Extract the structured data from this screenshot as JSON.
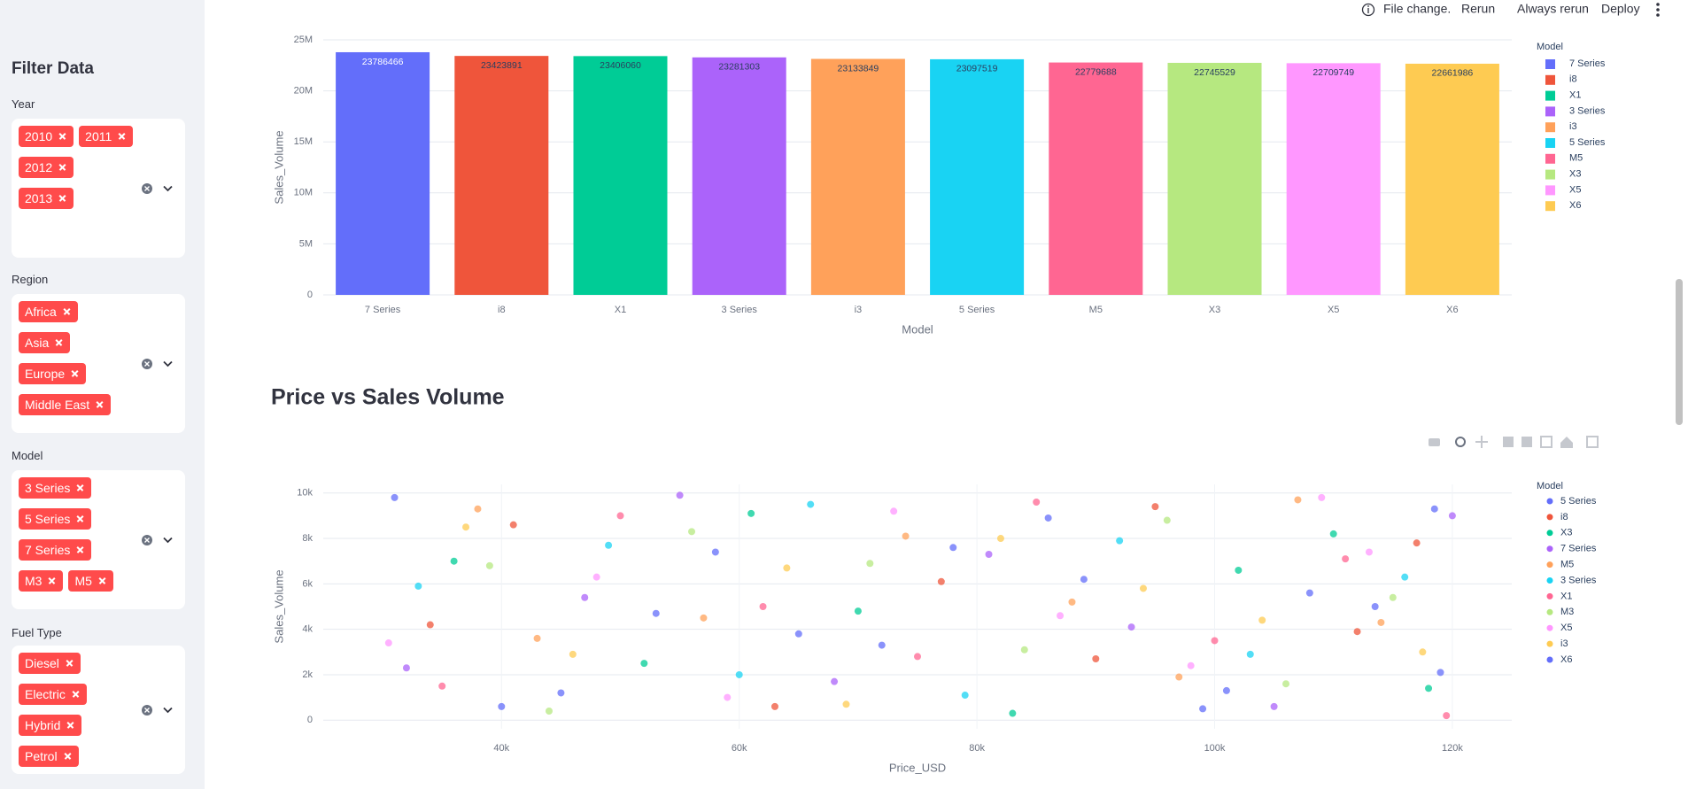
{
  "header": {
    "status": "File change.",
    "actions": [
      "Rerun",
      "Always rerun",
      "Deploy"
    ]
  },
  "sidebar": {
    "title": "Filter Data",
    "filters": [
      {
        "label": "Year",
        "selected": [
          "2010",
          "2011",
          "2012",
          "2013"
        ]
      },
      {
        "label": "Region",
        "selected": [
          "Africa",
          "Asia",
          "Europe",
          "Middle East"
        ]
      },
      {
        "label": "Model",
        "selected": [
          "3 Series",
          "5 Series",
          "7 Series",
          "M3",
          "M5"
        ]
      },
      {
        "label": "Fuel Type",
        "selected": [
          "Diesel",
          "Electric",
          "Hybrid",
          "Petrol"
        ]
      }
    ]
  },
  "sections": {
    "scatter_heading": "Price vs Sales Volume"
  },
  "chart_data": [
    {
      "type": "bar",
      "xlabel": "Model",
      "ylabel": "Sales_Volume",
      "legend_title": "Model",
      "legend": "right",
      "grid": true,
      "categories": [
        "7 Series",
        "i8",
        "X1",
        "3 Series",
        "i3",
        "5 Series",
        "M5",
        "X3",
        "X5",
        "X6"
      ],
      "values": [
        23786466,
        23423891,
        23406060,
        23281303,
        23133849,
        23097519,
        22779688,
        22745529,
        22709749,
        22661986
      ],
      "colors": [
        "#636efa",
        "#ef553b",
        "#00cc96",
        "#ab63fa",
        "#ffa15a",
        "#19d3f3",
        "#ff6692",
        "#b6e880",
        "#ff97ff",
        "#fecb52"
      ],
      "ylim": [
        0,
        25000000
      ],
      "yticks": [
        0,
        {
          "value": 5000000,
          "label": "5M"
        },
        {
          "value": 10000000,
          "label": "10M"
        },
        {
          "value": 15000000,
          "label": "15M"
        },
        {
          "value": 20000000,
          "label": "20M"
        },
        {
          "value": 25000000,
          "label": "25M"
        }
      ]
    },
    {
      "type": "scatter",
      "xlabel": "Price_USD",
      "ylabel": "Sales_Volume",
      "legend_title": "Model",
      "legend": "right",
      "grid": true,
      "xlim": [
        25000,
        125000
      ],
      "ylim": [
        -380,
        10380
      ],
      "xticks": [
        {
          "value": 40000,
          "label": "40k"
        },
        {
          "value": 60000,
          "label": "60k"
        },
        {
          "value": 80000,
          "label": "80k"
        },
        {
          "value": 100000,
          "label": "100k"
        },
        {
          "value": 120000,
          "label": "120k"
        }
      ],
      "yticks": [
        0,
        {
          "value": 2000,
          "label": "2k"
        },
        {
          "value": 4000,
          "label": "4k"
        },
        {
          "value": 6000,
          "label": "6k"
        },
        {
          "value": 8000,
          "label": "8k"
        },
        {
          "value": 10000,
          "label": "10k"
        }
      ],
      "series": [
        {
          "name": "5 Series",
          "color": "#636efa",
          "x": [
            31000,
            45000,
            58000,
            72000,
            86000,
            99000,
            108000,
            119000
          ],
          "values": [
            9800,
            1200,
            7400,
            3300,
            8900,
            500,
            5600,
            2100
          ]
        },
        {
          "name": "i8",
          "color": "#ef553b",
          "x": [
            34000,
            41000,
            63000,
            77000,
            90000,
            95000,
            112000,
            117000
          ],
          "values": [
            4200,
            8600,
            600,
            6100,
            2700,
            9400,
            3900,
            7800
          ]
        },
        {
          "name": "X3",
          "color": "#00cc96",
          "x": [
            36000,
            52000,
            61000,
            70000,
            83000,
            102000,
            110000,
            118000
          ],
          "values": [
            7000,
            2500,
            9100,
            4800,
            300,
            6600,
            8200,
            1400
          ]
        },
        {
          "name": "7 Series",
          "color": "#ab63fa",
          "x": [
            32000,
            47000,
            55000,
            68000,
            81000,
            93000,
            105000,
            120000
          ],
          "values": [
            2300,
            5400,
            9900,
            1700,
            7300,
            4100,
            600,
            9000
          ]
        },
        {
          "name": "M5",
          "color": "#ffa15a",
          "x": [
            38000,
            43000,
            57000,
            74000,
            88000,
            97000,
            107000,
            114000
          ],
          "values": [
            9300,
            3600,
            4500,
            8100,
            5200,
            1900,
            9700,
            4300
          ]
        },
        {
          "name": "3 Series",
          "color": "#19d3f3",
          "x": [
            33000,
            49000,
            60000,
            66000,
            79000,
            92000,
            103000,
            116000
          ],
          "values": [
            5900,
            7700,
            2000,
            9500,
            1100,
            7900,
            2900,
            6300
          ]
        },
        {
          "name": "X1",
          "color": "#ff6692",
          "x": [
            35000,
            50000,
            62000,
            75000,
            85000,
            100000,
            111000,
            119500
          ],
          "values": [
            1500,
            9000,
            5000,
            2800,
            9600,
            3500,
            7100,
            200
          ]
        },
        {
          "name": "M3",
          "color": "#b6e880",
          "x": [
            39000,
            44000,
            56000,
            71000,
            84000,
            96000,
            106000,
            115000
          ],
          "values": [
            6800,
            400,
            8300,
            6900,
            3100,
            8800,
            1600,
            5400
          ]
        },
        {
          "name": "X5",
          "color": "#ff97ff",
          "x": [
            30500,
            48000,
            59000,
            73000,
            87000,
            98000,
            109000,
            113000
          ],
          "values": [
            3400,
            6300,
            1000,
            9200,
            4600,
            2400,
            9800,
            7400
          ]
        },
        {
          "name": "i3",
          "color": "#fecb52",
          "x": [
            37000,
            46000,
            64000,
            69000,
            82000,
            94000,
            104000,
            117500
          ],
          "values": [
            8500,
            2900,
            6700,
            700,
            8000,
            5800,
            4400,
            3000
          ]
        },
        {
          "name": "X6",
          "color": "#636efa",
          "x": [
            40000,
            53000,
            65000,
            78000,
            89000,
            101000,
            113500,
            118500
          ],
          "values": [
            600,
            4700,
            3800,
            7600,
            6200,
            1300,
            5000,
            9300
          ]
        }
      ]
    }
  ]
}
